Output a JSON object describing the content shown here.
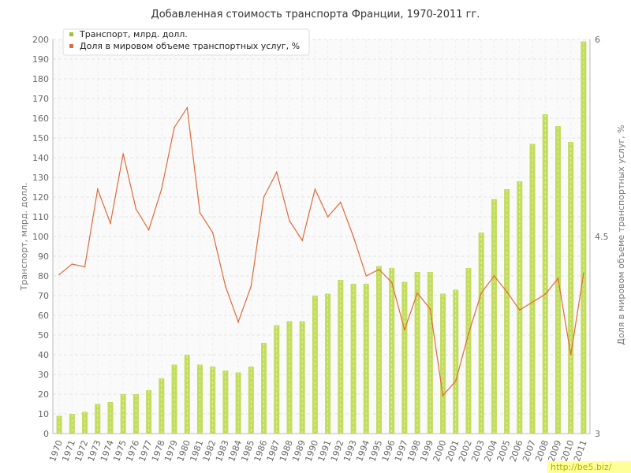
{
  "chart_data": {
    "type": "bar",
    "title": "Добавленная стоимость транспорта Франции, 1970-2011 гг.",
    "ylabel": "Транспорт, млрд. долл.",
    "y2label": "Доля в мировом объеме транспортных услуг, %",
    "ylim": [
      0,
      200
    ],
    "y2lim": [
      3,
      6
    ],
    "yticks": [
      0,
      10,
      20,
      30,
      40,
      50,
      60,
      70,
      80,
      90,
      100,
      110,
      120,
      130,
      140,
      150,
      160,
      170,
      180,
      190,
      200
    ],
    "y2ticks": [
      3,
      4.5,
      6
    ],
    "grid": true,
    "legend_position": "top-left",
    "categories": [
      "1970",
      "1971",
      "1972",
      "1973",
      "1974",
      "1975",
      "1976",
      "1977",
      "1978",
      "1979",
      "1980",
      "1981",
      "1982",
      "1983",
      "1984",
      "1985",
      "1986",
      "1987",
      "1988",
      "1989",
      "1990",
      "1991",
      "1992",
      "1993",
      "1994",
      "1995",
      "1996",
      "1997",
      "1998",
      "1999",
      "2000",
      "2001",
      "2002",
      "2003",
      "2004",
      "2005",
      "2006",
      "2007",
      "2008",
      "2009",
      "2010",
      "2011"
    ],
    "series": [
      {
        "name": "Транспорт, млрд. долл.",
        "type": "bar",
        "axis": "left",
        "color": "#c2dc5c",
        "values": [
          9,
          10,
          11,
          15,
          16,
          20,
          20,
          22,
          28,
          35,
          40,
          35,
          34,
          32,
          31,
          34,
          46,
          55,
          57,
          57,
          70,
          71,
          78,
          76,
          76,
          85,
          84,
          77,
          82,
          82,
          71,
          73,
          84,
          102,
          119,
          124,
          128,
          147,
          162,
          156,
          148,
          199
        ]
      },
      {
        "name": "Доля в мировом объеме транспортных услуг, %",
        "type": "line",
        "axis": "right",
        "color": "#e06a3a",
        "values": [
          4.21,
          4.29,
          4.27,
          4.86,
          4.6,
          5.13,
          4.71,
          4.55,
          4.86,
          5.33,
          5.48,
          4.68,
          4.53,
          4.12,
          3.85,
          4.12,
          4.8,
          4.99,
          4.62,
          4.47,
          4.86,
          4.65,
          4.76,
          4.5,
          4.2,
          4.25,
          4.15,
          3.79,
          4.07,
          3.95,
          3.29,
          3.4,
          3.76,
          4.07,
          4.2,
          4.08,
          3.94,
          4.0,
          4.06,
          4.18,
          3.6,
          4.22
        ]
      }
    ]
  },
  "watermark": "http://be5.biz/",
  "colors": {
    "grid": "#e4e4e4",
    "axis": "#bbbbbb",
    "plot_bg": "#fafafa"
  }
}
